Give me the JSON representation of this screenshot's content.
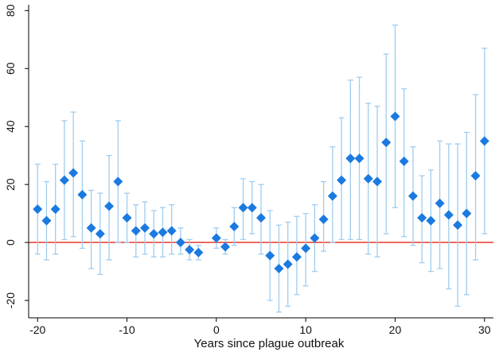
{
  "chart_data": {
    "type": "scatter",
    "title": "",
    "xlabel": "Years since plague outbreak",
    "ylabel": "",
    "xlim": [
      -21,
      31
    ],
    "ylim": [
      -26,
      82
    ],
    "xticks": [
      -20,
      -10,
      0,
      10,
      20,
      30
    ],
    "yticks": [
      -20,
      0,
      20,
      40,
      60,
      80
    ],
    "xtick_labels": [
      "-20",
      "-10",
      "0",
      "10",
      "20",
      "30"
    ],
    "ytick_labels": [
      "-20",
      "0",
      "20",
      "40",
      "60",
      "80"
    ],
    "reference_line": {
      "y": 0,
      "color": "#e8392c"
    },
    "grid": false,
    "legend": "none",
    "colors": {
      "marker": "#1a7ae0",
      "error_bar": "#9fcdf0",
      "axis": "#000000"
    },
    "series": [
      {
        "x": [
          -20,
          -19,
          -18,
          -17,
          -16,
          -15,
          -14,
          -13,
          -12,
          -11,
          -10,
          -9,
          -8,
          -7,
          -6,
          -5,
          -4,
          -3,
          -2,
          0,
          1,
          2,
          3,
          4,
          5,
          6,
          7,
          8,
          9,
          10,
          11,
          12,
          13,
          14,
          15,
          16,
          17,
          18,
          19,
          20,
          21,
          22,
          23,
          24,
          25,
          26,
          27,
          28,
          29,
          30
        ],
        "y": [
          11.5,
          7.5,
          11.5,
          21.5,
          24,
          16.5,
          5,
          3,
          12.5,
          21,
          8.5,
          4,
          5,
          3,
          3.5,
          4,
          0,
          -2.5,
          -3.5,
          1.5,
          -1.5,
          5.5,
          12,
          12,
          8.5,
          -4.5,
          -9,
          -7.5,
          -5,
          -2,
          1.5,
          8,
          16,
          21.5,
          29,
          29,
          22,
          21,
          34.5,
          43.5,
          28,
          16,
          8.5,
          7.5,
          13.5,
          9.5,
          6,
          10,
          23,
          35
        ],
        "ci_low": [
          -4,
          -6,
          -4,
          1,
          2,
          -2,
          -9,
          -11,
          -6,
          0,
          0,
          -5,
          -4,
          -5,
          -5,
          -4,
          -4,
          -6,
          -6,
          -2,
          -4,
          -1,
          1,
          3,
          -4,
          -20,
          -24,
          -22,
          -18,
          -15,
          -10,
          -3,
          0,
          1,
          1,
          1,
          -4,
          -5,
          3,
          12,
          2,
          -1,
          -7,
          -10,
          -9,
          -16,
          -22,
          -18,
          -6,
          3
        ],
        "ci_high": [
          27,
          21,
          27,
          42,
          45,
          35,
          18,
          17,
          30,
          42,
          17,
          13,
          14,
          11,
          12,
          13,
          5,
          1,
          -1,
          5,
          1,
          12,
          22,
          21,
          20,
          11,
          6,
          7,
          9,
          10,
          13,
          21,
          33,
          43,
          56,
          57,
          48,
          47,
          65,
          75,
          53,
          33,
          23,
          25,
          35,
          34,
          34,
          38,
          51,
          67
        ]
      }
    ]
  }
}
